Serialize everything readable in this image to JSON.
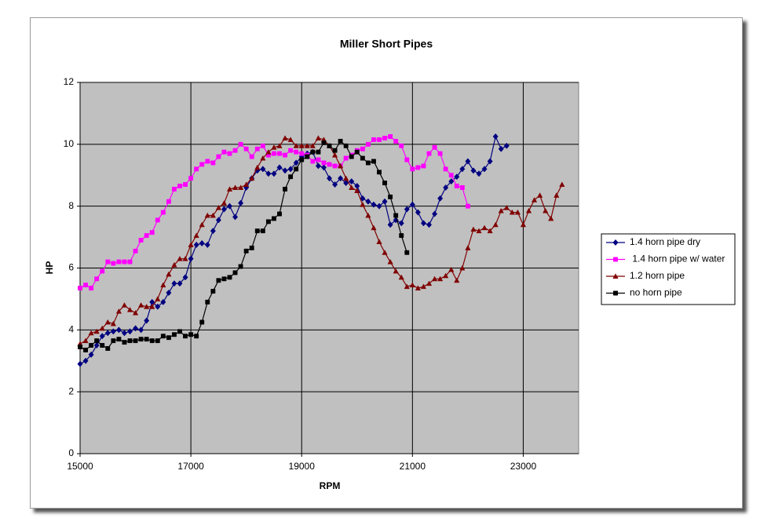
{
  "chart_data": {
    "type": "line",
    "title": "Miller Short Pipes",
    "x_label": "RPM",
    "y_label": "HP",
    "xlim": [
      15000,
      24000
    ],
    "xticks": [
      15000,
      17000,
      19000,
      21000,
      23000
    ],
    "ylim": [
      0,
      12
    ],
    "yticks": [
      0,
      2,
      4,
      6,
      8,
      10,
      12
    ],
    "grid": true,
    "legend": "right",
    "series": [
      {
        "name": "1.4 horn pipe dry",
        "color": "#000080",
        "marker": "diamond",
        "x": [
          15000,
          15100,
          15200,
          15300,
          15400,
          15500,
          15600,
          15700,
          15800,
          15900,
          16000,
          16100,
          16200,
          16300,
          16400,
          16500,
          16600,
          16700,
          16800,
          16900,
          17000,
          17100,
          17200,
          17300,
          17400,
          17500,
          17600,
          17700,
          17800,
          17900,
          18000,
          18100,
          18200,
          18300,
          18400,
          18500,
          18600,
          18700,
          18800,
          18900,
          19000,
          19100,
          19200,
          19300,
          19400,
          19500,
          19600,
          19700,
          19800,
          19900,
          20000,
          20100,
          20200,
          20300,
          20400,
          20500,
          20600,
          20700,
          20800,
          20900,
          21000,
          21100,
          21200,
          21300,
          21400,
          21500,
          21600,
          21700,
          21800,
          21900,
          22000,
          22100,
          22200,
          22300,
          22400,
          22500,
          22600,
          22700
        ],
        "values": [
          2.9,
          3.0,
          3.2,
          3.5,
          3.8,
          3.9,
          3.95,
          4.0,
          3.9,
          3.95,
          4.05,
          4.0,
          4.3,
          4.9,
          4.75,
          4.9,
          5.2,
          5.5,
          5.5,
          5.7,
          6.3,
          6.75,
          6.8,
          6.75,
          7.2,
          7.55,
          7.9,
          8.0,
          7.65,
          8.1,
          8.6,
          8.9,
          9.15,
          9.2,
          9.05,
          9.05,
          9.25,
          9.15,
          9.2,
          9.4,
          9.6,
          9.7,
          9.75,
          9.3,
          9.25,
          8.9,
          8.7,
          8.9,
          8.75,
          8.8,
          8.65,
          8.25,
          8.15,
          8.05,
          8.0,
          8.15,
          7.4,
          7.55,
          7.45,
          7.9,
          8.05,
          7.8,
          7.45,
          7.4,
          7.75,
          8.25,
          8.6,
          8.8,
          8.95,
          9.2,
          9.45,
          9.15,
          9.05,
          9.2,
          9.45,
          10.25,
          9.85,
          9.95
        ]
      },
      {
        "name": " 1.4 horn pipe w/ water",
        "color": "#ff00ff",
        "marker": "square",
        "x": [
          15000,
          15100,
          15200,
          15300,
          15400,
          15500,
          15600,
          15700,
          15800,
          15900,
          16000,
          16100,
          16200,
          16300,
          16400,
          16500,
          16600,
          16700,
          16800,
          16900,
          17000,
          17100,
          17200,
          17300,
          17400,
          17500,
          17600,
          17700,
          17800,
          17900,
          18000,
          18100,
          18200,
          18300,
          18400,
          18500,
          18600,
          18700,
          18800,
          18900,
          19000,
          19100,
          19200,
          19300,
          19400,
          19500,
          19600,
          19700,
          19800,
          19900,
          20000,
          20100,
          20200,
          20300,
          20400,
          20500,
          20600,
          20700,
          20800,
          20900,
          21000,
          21100,
          21200,
          21300,
          21400,
          21500,
          21600,
          21700,
          21800,
          21900,
          22000
        ],
        "values": [
          5.35,
          5.45,
          5.35,
          5.65,
          5.9,
          6.2,
          6.15,
          6.2,
          6.2,
          6.2,
          6.55,
          6.9,
          7.05,
          7.15,
          7.55,
          7.8,
          8.15,
          8.55,
          8.65,
          8.7,
          8.9,
          9.2,
          9.35,
          9.45,
          9.4,
          9.6,
          9.75,
          9.7,
          9.8,
          10.0,
          9.85,
          9.6,
          9.85,
          9.95,
          9.65,
          9.7,
          9.7,
          9.65,
          9.8,
          9.75,
          9.7,
          9.65,
          9.45,
          9.5,
          9.4,
          9.35,
          9.3,
          9.3,
          9.55,
          9.65,
          9.8,
          9.85,
          10.0,
          10.15,
          10.15,
          10.2,
          10.25,
          10.1,
          9.95,
          9.5,
          9.2,
          9.25,
          9.3,
          9.7,
          9.9,
          9.7,
          9.2,
          9.0,
          8.65,
          8.6,
          8.0
        ]
      },
      {
        "name": "1.2 horn pipe",
        "color": "#800000",
        "marker": "triangle",
        "x": [
          15000,
          15100,
          15200,
          15300,
          15400,
          15500,
          15600,
          15700,
          15800,
          15900,
          16000,
          16100,
          16200,
          16300,
          16400,
          16500,
          16600,
          16700,
          16800,
          16900,
          17000,
          17100,
          17200,
          17300,
          17400,
          17500,
          17600,
          17700,
          17800,
          17900,
          18000,
          18100,
          18200,
          18300,
          18400,
          18500,
          18600,
          18700,
          18800,
          18900,
          19000,
          19100,
          19200,
          19300,
          19400,
          19500,
          19600,
          19700,
          19800,
          19900,
          20000,
          20100,
          20200,
          20300,
          20400,
          20500,
          20600,
          20700,
          20800,
          20900,
          21000,
          21100,
          21200,
          21300,
          21400,
          21500,
          21600,
          21700,
          21800,
          21900,
          22000,
          22100,
          22200,
          22300,
          22400,
          22500,
          22600,
          22700,
          22800,
          22900,
          23000,
          23100,
          23200,
          23300,
          23400,
          23500,
          23600,
          23700
        ],
        "values": [
          3.55,
          3.65,
          3.9,
          3.95,
          4.05,
          4.25,
          4.2,
          4.6,
          4.8,
          4.65,
          4.55,
          4.8,
          4.75,
          4.75,
          5.0,
          5.45,
          5.8,
          6.1,
          6.3,
          6.3,
          6.75,
          7.05,
          7.4,
          7.7,
          7.7,
          7.95,
          8.1,
          8.55,
          8.6,
          8.6,
          8.7,
          8.9,
          9.25,
          9.55,
          9.75,
          9.9,
          9.95,
          10.2,
          10.15,
          9.95,
          9.95,
          9.95,
          9.95,
          10.2,
          10.15,
          9.95,
          9.65,
          9.3,
          8.9,
          8.6,
          8.5,
          8.05,
          7.7,
          7.3,
          6.85,
          6.5,
          6.2,
          5.9,
          5.7,
          5.4,
          5.45,
          5.35,
          5.4,
          5.5,
          5.65,
          5.65,
          5.75,
          5.95,
          5.6,
          6.0,
          6.65,
          7.25,
          7.2,
          7.3,
          7.2,
          7.4,
          7.85,
          7.95,
          7.8,
          7.8,
          7.4,
          7.85,
          8.2,
          8.35,
          7.85,
          7.6,
          8.35,
          8.7
        ]
      },
      {
        "name": "no horn pipe",
        "color": "#000000",
        "marker": "square",
        "x": [
          15000,
          15100,
          15200,
          15300,
          15400,
          15500,
          15600,
          15700,
          15800,
          15900,
          16000,
          16100,
          16200,
          16300,
          16400,
          16500,
          16600,
          16700,
          16800,
          16900,
          17000,
          17100,
          17200,
          17300,
          17400,
          17500,
          17600,
          17700,
          17800,
          17900,
          18000,
          18100,
          18200,
          18300,
          18400,
          18500,
          18600,
          18700,
          18800,
          18900,
          19000,
          19100,
          19200,
          19300,
          19400,
          19500,
          19600,
          19700,
          19800,
          19900,
          20000,
          20100,
          20200,
          20300,
          20400,
          20500,
          20600,
          20700,
          20800,
          20900
        ],
        "values": [
          3.45,
          3.35,
          3.5,
          3.65,
          3.5,
          3.4,
          3.65,
          3.7,
          3.6,
          3.65,
          3.65,
          3.7,
          3.7,
          3.65,
          3.65,
          3.8,
          3.75,
          3.85,
          3.95,
          3.8,
          3.85,
          3.8,
          4.25,
          4.9,
          5.25,
          5.6,
          5.65,
          5.7,
          5.85,
          6.05,
          6.55,
          6.65,
          7.2,
          7.2,
          7.5,
          7.6,
          7.75,
          8.55,
          8.95,
          9.2,
          9.5,
          9.6,
          9.75,
          9.75,
          10.05,
          9.95,
          9.8,
          10.1,
          9.95,
          9.6,
          9.75,
          9.55,
          9.4,
          9.45,
          9.1,
          8.75,
          8.3,
          7.7,
          7.05,
          6.5
        ]
      }
    ]
  }
}
